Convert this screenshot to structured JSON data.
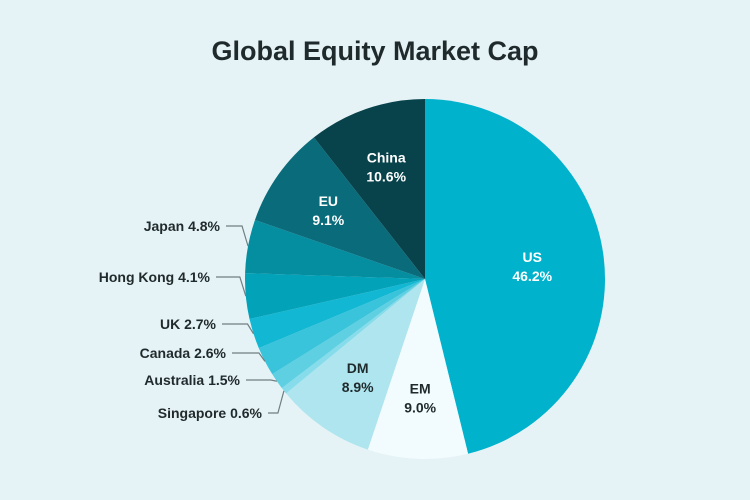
{
  "chart_data": {
    "type": "pie",
    "title": "Global Equity Market Cap",
    "slices": [
      {
        "label": "US",
        "value": 46.2,
        "display": "46.2%",
        "color": "#00b2cc",
        "text_color": "#ffffff",
        "label_mode": "inside"
      },
      {
        "label": "EM",
        "value": 9.0,
        "display": "9.0%",
        "color": "#f2fbfd",
        "text_color": "#1f2a2c",
        "label_mode": "inside"
      },
      {
        "label": "DM",
        "value": 8.9,
        "display": "8.9%",
        "color": "#aee5ee",
        "text_color": "#1f2a2c",
        "label_mode": "inside"
      },
      {
        "label": "Singapore",
        "value": 0.6,
        "display": "0.6%",
        "color": "#86dcea",
        "text_color": "#1f2a2c",
        "label_mode": "leader"
      },
      {
        "label": "Australia",
        "value": 1.5,
        "display": "1.5%",
        "color": "#5fd0e2",
        "text_color": "#1f2a2c",
        "label_mode": "leader"
      },
      {
        "label": "Canada",
        "value": 2.6,
        "display": "2.6%",
        "color": "#39c4db",
        "text_color": "#1f2a2c",
        "label_mode": "leader"
      },
      {
        "label": "UK",
        "value": 2.7,
        "display": "2.7%",
        "color": "#12b8d3",
        "text_color": "#1f2a2c",
        "label_mode": "leader"
      },
      {
        "label": "Hong Kong",
        "value": 4.1,
        "display": "4.1%",
        "color": "#02a2b9",
        "text_color": "#1f2a2c",
        "label_mode": "leader"
      },
      {
        "label": "Japan",
        "value": 4.8,
        "display": "4.8%",
        "color": "#058da0",
        "text_color": "#1f2a2c",
        "label_mode": "leader"
      },
      {
        "label": "EU",
        "value": 9.1,
        "display": "9.1%",
        "color": "#0a6c7a",
        "text_color": "#ffffff",
        "label_mode": "inside"
      },
      {
        "label": "China",
        "value": 10.6,
        "display": "10.6%",
        "color": "#08434c",
        "text_color": "#ffffff",
        "label_mode": "inside"
      }
    ]
  }
}
